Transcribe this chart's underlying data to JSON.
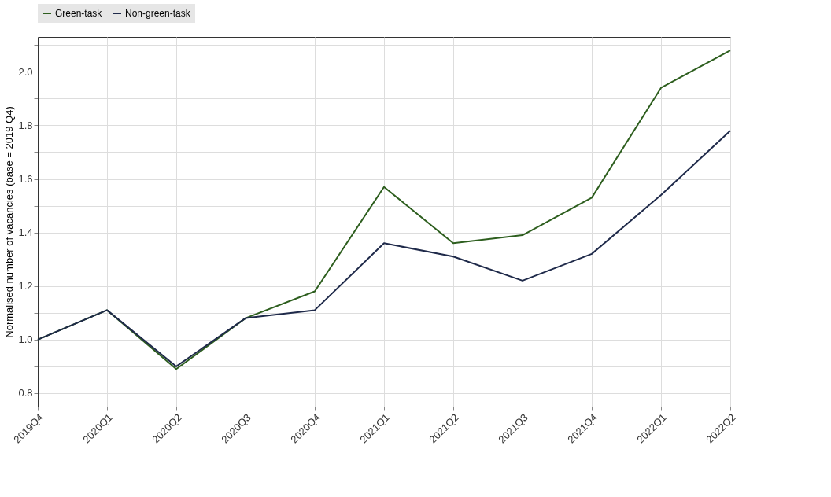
{
  "chart_data": {
    "type": "line",
    "ylabel": "Normalised number of vacancies (base = 2019 Q4)",
    "categories": [
      "2019Q4",
      "2020Q1",
      "2020Q2",
      "2020Q3",
      "2020Q4",
      "2021Q1",
      "2021Q2",
      "2021Q3",
      "2021Q4",
      "2022Q1",
      "2022Q2"
    ],
    "series": [
      {
        "name": "Green-task",
        "color": "#2d5e1e",
        "values": [
          1.0,
          1.11,
          0.89,
          1.08,
          1.18,
          1.57,
          1.36,
          1.39,
          1.53,
          1.94,
          2.08
        ]
      },
      {
        "name": "Non-green-task",
        "color": "#1f2a4a",
        "values": [
          1.0,
          1.11,
          0.9,
          1.08,
          1.11,
          1.36,
          1.31,
          1.22,
          1.32,
          1.54,
          1.78
        ]
      }
    ],
    "ylim": [
      0.75,
      2.13
    ],
    "yticks": [
      0.8,
      {
        "value": 0.9,
        "label": null
      },
      {
        "value": 1.0,
        "label": "1.0"
      },
      {
        "value": 1.1,
        "label": null
      },
      1.2,
      {
        "value": 1.3,
        "label": null
      },
      1.4,
      {
        "value": 1.5,
        "label": null
      },
      1.6,
      {
        "value": 1.7,
        "label": null
      },
      1.8,
      {
        "value": 1.9,
        "label": null
      },
      {
        "value": 2.0,
        "label": "2.0"
      },
      {
        "value": 2.1,
        "label": null
      }
    ],
    "grid": true,
    "legend": "top",
    "marker": "none",
    "line_style": "solid"
  }
}
